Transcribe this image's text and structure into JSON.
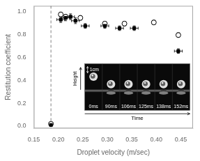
{
  "chart_data": {
    "type": "scatter",
    "xlabel": "Droplet velocity (m/sec)",
    "ylabel": "Restitution coefficient",
    "xlim": [
      0.15,
      0.475
    ],
    "ylim": [
      -0.02,
      1.05
    ],
    "xticks": [
      0.15,
      {
        "value": 0.2,
        "label": "0.20"
      },
      0.25,
      {
        "value": 0.3,
        "label": "0.30"
      },
      0.35,
      {
        "value": 0.4,
        "label": "0.40"
      },
      0.45
    ],
    "yticks": [
      {
        "value": 0,
        "label": "0.0"
      },
      0.2,
      0.4,
      0.6,
      0.8,
      {
        "value": 1,
        "label": "1.0"
      }
    ],
    "grid": false,
    "series": [
      {
        "marker": "square",
        "color": "#000000",
        "x": [
          0.185,
          0.205,
          0.215,
          0.225,
          0.235,
          0.255,
          0.295,
          0.325,
          0.355,
          0.445
        ],
        "values": [
          0.01,
          0.93,
          0.945,
          0.955,
          0.92,
          0.875,
          0.875,
          0.855,
          0.855,
          0.655
        ],
        "xerr": [
          0,
          0.008,
          0.008,
          0.008,
          0.008,
          0.008,
          0.008,
          0.008,
          0.008,
          0.008
        ],
        "yerr": [
          0,
          0.025,
          0.025,
          0.025,
          0.025,
          0.02,
          0.02,
          0.02,
          0.02,
          0.02
        ]
      },
      {
        "marker": "circle",
        "color": "#000000",
        "x": [
          0.185,
          0.205,
          0.215,
          0.245,
          0.295,
          0.335,
          0.395,
          0.445
        ],
        "values": [
          0.02,
          0.975,
          0.955,
          0.945,
          0.895,
          0.895,
          0.905,
          0.795
        ],
        "yerr": [
          0,
          0.02,
          0.02,
          0.02,
          0.02,
          0.02,
          0.02,
          0.02
        ]
      }
    ],
    "vline": {
      "x": 0.185,
      "color": "#808080",
      "line_style": "dashed"
    },
    "inset": {
      "labels": [
        "0ms",
        "90ms",
        "106ms",
        "125ms",
        "138ms",
        "152ms"
      ],
      "scale_label": "1cm",
      "xlabel": "Time",
      "ylabel": "Height"
    }
  }
}
